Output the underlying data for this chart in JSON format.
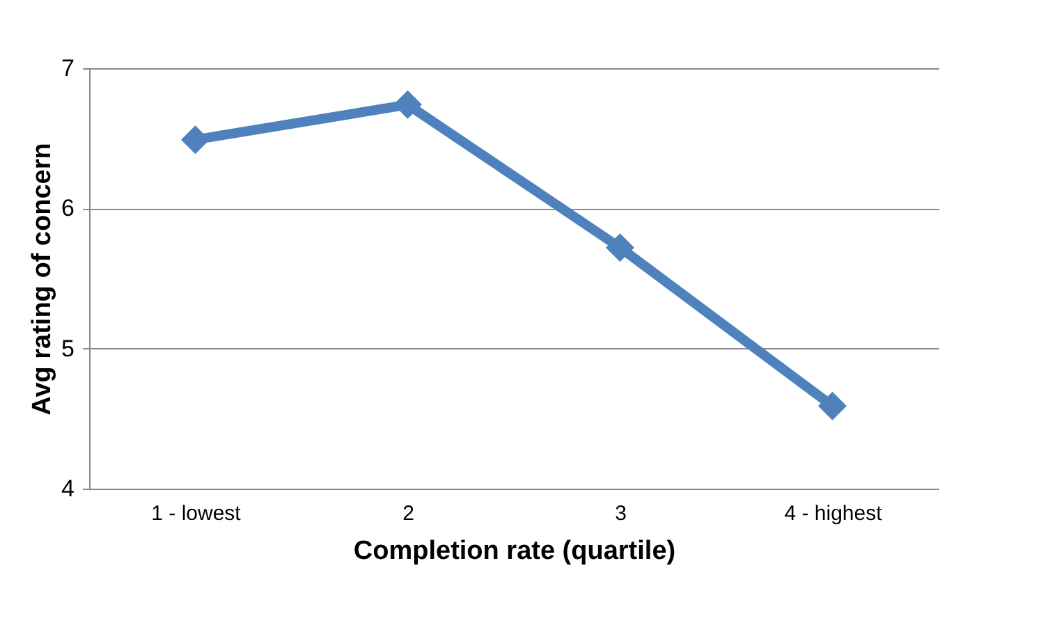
{
  "chart_data": {
    "type": "line",
    "xlabel": "Completion rate (quartile)",
    "ylabel": "Avg rating of concern",
    "categories": [
      "1 - lowest",
      "2",
      "3",
      "4 - highest"
    ],
    "series": [
      {
        "color": "#4f81bd",
        "values": [
          6.49,
          6.74,
          5.72,
          4.59
        ]
      }
    ],
    "ylim": [
      4,
      7
    ],
    "yticks": [
      4,
      5,
      6,
      7
    ],
    "grid": "y",
    "marker": "diamond",
    "legend": false
  }
}
